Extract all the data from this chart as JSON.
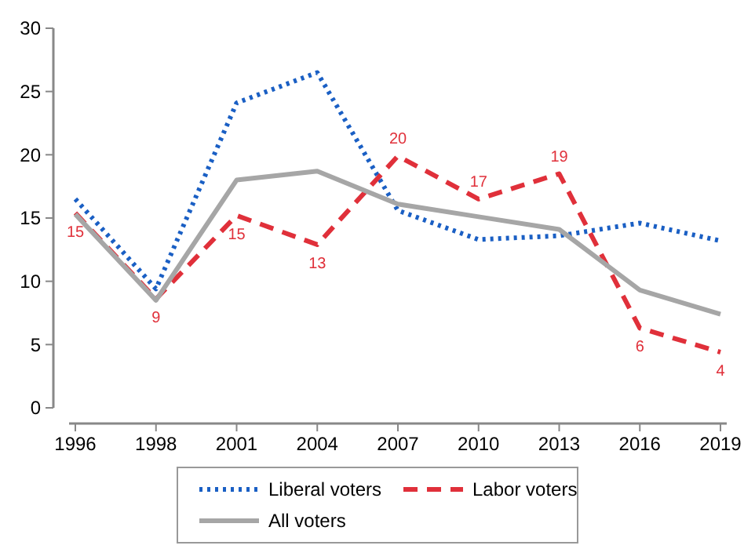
{
  "chart_data": {
    "type": "line",
    "categories": [
      "1996",
      "1998",
      "2001",
      "2004",
      "2007",
      "2010",
      "2013",
      "2016",
      "2019"
    ],
    "series": [
      {
        "name": "Liberal voters",
        "color": "#1a5fc4",
        "line_style": "dotted",
        "values": [
          16.5,
          9.4,
          24.1,
          26.5,
          15.6,
          13.3,
          13.6,
          14.6,
          13.2
        ]
      },
      {
        "name": "Labor voters",
        "color": "#e0303a",
        "line_style": "dashed",
        "values": [
          15.4,
          8.6,
          15.2,
          12.9,
          19.9,
          16.5,
          18.5,
          6.3,
          4.4
        ],
        "value_labels": [
          "15",
          "9",
          "15",
          "13",
          "20",
          "17",
          "19",
          "6",
          "4"
        ]
      },
      {
        "name": "All voters",
        "color": "#a6a6a6",
        "line_style": "solid",
        "values": [
          15.3,
          8.5,
          18.0,
          18.7,
          16.1,
          15.1,
          14.1,
          9.3,
          7.4
        ]
      }
    ],
    "ylim": [
      0,
      30
    ],
    "yticks": [
      0,
      5,
      10,
      15,
      20,
      25,
      30
    ],
    "grid": false,
    "legend": "bottom"
  }
}
